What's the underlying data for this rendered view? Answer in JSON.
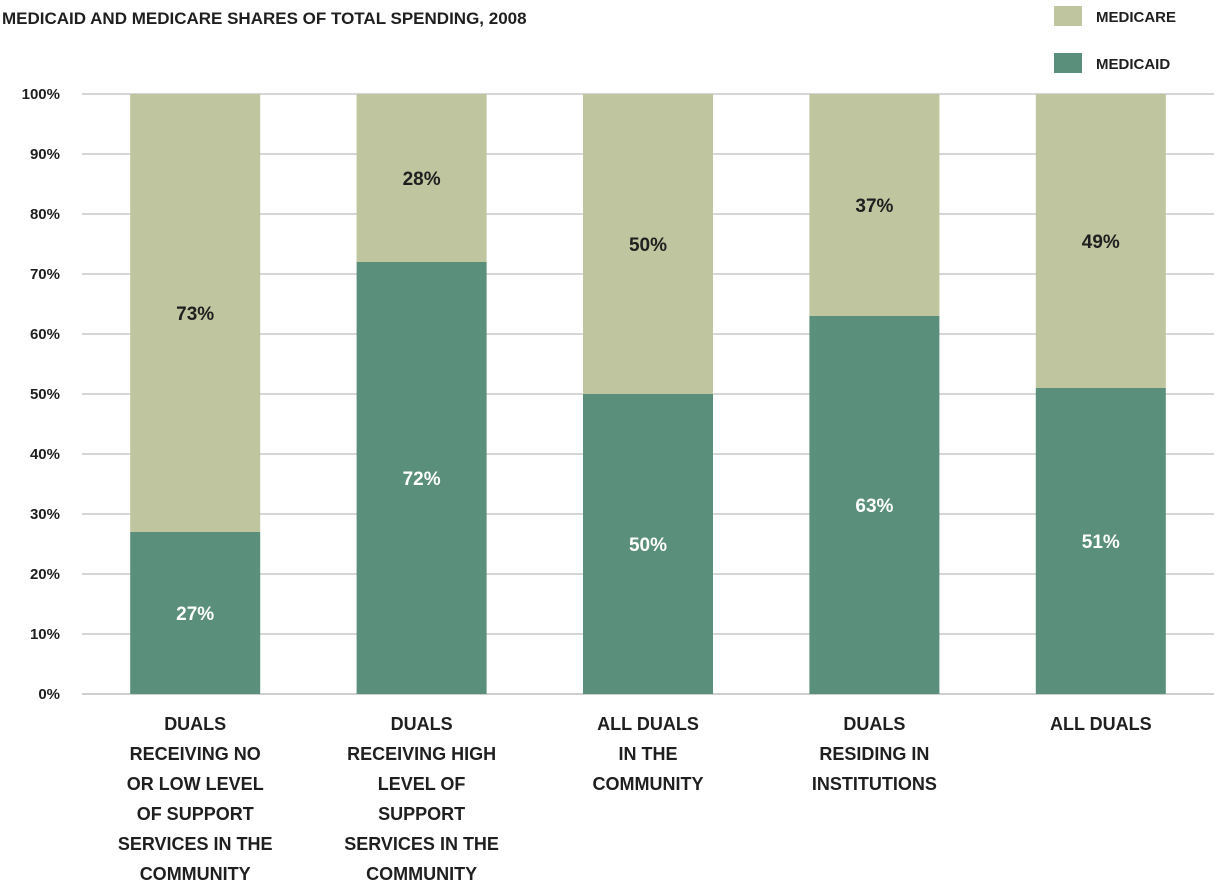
{
  "chart_data": {
    "type": "bar",
    "stacked": true,
    "title": "MEDICAID AND MEDICARE SHARES OF TOTAL SPENDING, 2008",
    "categories": [
      [
        "DUALS",
        "RECEIVING NO",
        "OR LOW LEVEL",
        "OF SUPPORT",
        "SERVICES IN THE",
        "COMMUNITY"
      ],
      [
        "DUALS",
        "RECEIVING HIGH",
        "LEVEL OF",
        "SUPPORT",
        "SERVICES IN THE",
        "COMMUNITY"
      ],
      [
        "ALL DUALS",
        "IN THE",
        "COMMUNITY"
      ],
      [
        "DUALS",
        "RESIDING IN",
        "INSTITUTIONS"
      ],
      [
        "ALL DUALS"
      ]
    ],
    "series": [
      {
        "name": "MEDICAID",
        "color": "#5a8f7b",
        "label_color": "#ffffff",
        "values": [
          27,
          72,
          50,
          63,
          51
        ],
        "labels": [
          "27%",
          "72%",
          "50%",
          "63%",
          "51%"
        ]
      },
      {
        "name": "MEDICARE",
        "color": "#bfc59f",
        "label_color": "#1f1f1f",
        "values": [
          73,
          28,
          50,
          37,
          49
        ],
        "labels": [
          "73%",
          "28%",
          "50%",
          "37%",
          "49%"
        ]
      }
    ],
    "ylim": [
      0,
      100
    ],
    "yticks": [
      0,
      10,
      20,
      30,
      40,
      50,
      60,
      70,
      80,
      90,
      100
    ],
    "ytick_labels": [
      "0%",
      "10%",
      "20%",
      "30%",
      "40%",
      "50%",
      "60%",
      "70%",
      "80%",
      "90%",
      "100%"
    ],
    "grid": true,
    "legend": {
      "position": "top-right",
      "entries": [
        {
          "name": "MEDICARE",
          "color": "#bfc59f"
        },
        {
          "name": "MEDICAID",
          "color": "#5a8f7b"
        }
      ]
    }
  }
}
